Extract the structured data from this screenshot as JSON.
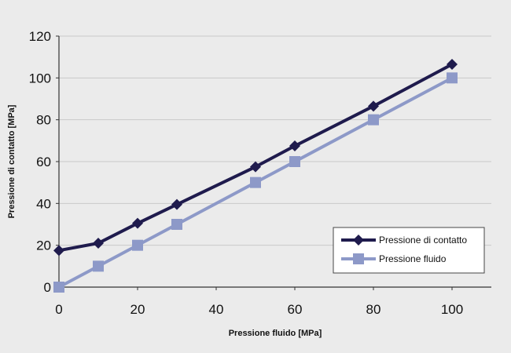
{
  "chart_data": {
    "type": "line",
    "xlabel": "Pressione fluido [MPa]",
    "ylabel": "Pressione di contatto [MPa]",
    "xlim": [
      0,
      100
    ],
    "ylim": [
      0,
      120
    ],
    "xticks": [
      0,
      20,
      40,
      60,
      80,
      100
    ],
    "yticks": [
      0,
      20,
      40,
      60,
      80,
      100,
      120
    ],
    "grid": "horizontal",
    "legend_position": "bottom-right",
    "series": [
      {
        "name": "Pressione di contatto",
        "color": "#1f1b4d",
        "marker": "diamond",
        "x": [
          0,
          10,
          20,
          30,
          50,
          60,
          80,
          100
        ],
        "y": [
          17.5,
          21,
          30.5,
          39.5,
          57.5,
          67.5,
          86.5,
          106.5
        ]
      },
      {
        "name": "Pressione fluido",
        "color": "#8d99c8",
        "marker": "square",
        "x": [
          0,
          10,
          20,
          30,
          50,
          60,
          80,
          100
        ],
        "y": [
          0,
          10,
          20,
          30,
          50,
          60,
          80,
          100
        ]
      }
    ]
  }
}
